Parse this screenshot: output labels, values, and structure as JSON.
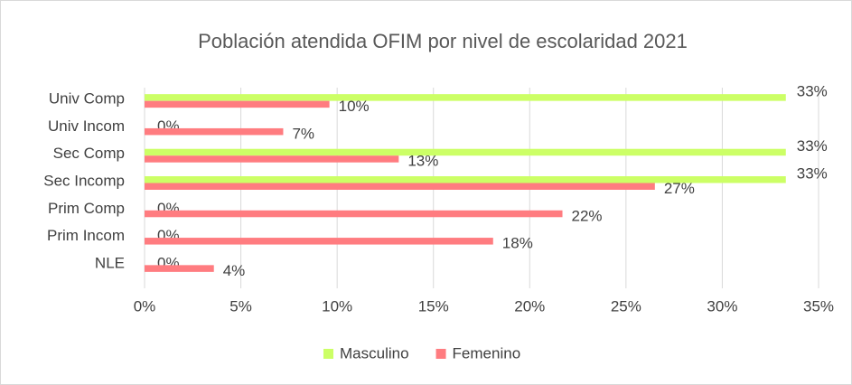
{
  "chart_data": {
    "type": "bar",
    "orientation": "horizontal",
    "title": "Población atendida OFIM por nivel de escolaridad 2021",
    "categories": [
      "Univ Comp",
      "Univ Incom",
      "Sec Comp",
      "Sec Incomp",
      "Prim Comp",
      "Prim Incom",
      "NLE"
    ],
    "series": [
      {
        "name": "Masculino",
        "color": "#ccff66",
        "values": [
          33.3,
          0,
          33.3,
          33.3,
          0,
          0,
          0
        ],
        "value_labels": [
          "33%",
          "0%",
          "33%",
          "33%",
          "0%",
          "0%",
          "0%"
        ]
      },
      {
        "name": "Femenino",
        "color": "#ff7c80",
        "values": [
          9.6,
          7.2,
          13.2,
          26.5,
          21.7,
          18.1,
          3.6
        ],
        "value_labels": [
          "10%",
          "7%",
          "13%",
          "27%",
          "22%",
          "18%",
          "4%"
        ]
      }
    ],
    "xlim": [
      0,
      35
    ],
    "xticks": [
      {
        "value": 0,
        "label": "0%"
      },
      {
        "value": 5,
        "label": "5%"
      },
      {
        "value": 10,
        "label": "10%"
      },
      {
        "value": 15,
        "label": "15%"
      },
      {
        "value": 20,
        "label": "20%"
      },
      {
        "value": 25,
        "label": "25%"
      },
      {
        "value": 30,
        "label": "30%"
      },
      {
        "value": 35,
        "label": "35%"
      }
    ],
    "grid": true,
    "legend": "bottom"
  }
}
